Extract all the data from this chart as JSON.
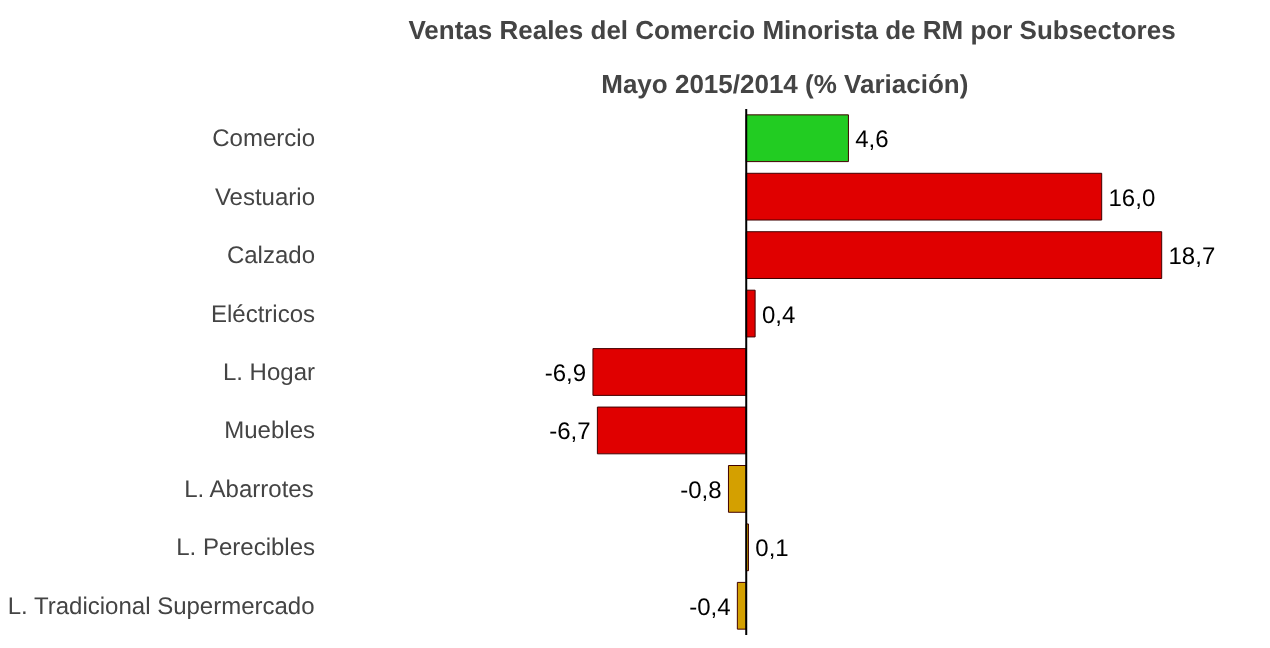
{
  "chart_data": {
    "type": "bar",
    "orientation": "horizontal",
    "title": "Ventas Reales del Comercio Minorista de RM por Subsectores",
    "subtitle": "Mayo   2015/2014 (% Variación)",
    "categories": [
      "Comercio",
      "Vestuario",
      "Calzado",
      "Eléctricos",
      "L. Hogar",
      "Muebles",
      "L. Abarrotes",
      "L. Perecibles",
      "L. Tradicional Supermercado"
    ],
    "values": [
      4.6,
      16.0,
      18.7,
      0.4,
      -6.9,
      -6.7,
      -0.8,
      0.1,
      -0.4
    ],
    "value_labels": [
      "4,6",
      "16,0",
      "18,7",
      "0,4",
      "-6,9",
      "-6,7",
      "-0,8",
      "0,1",
      "-0,4"
    ],
    "colors": [
      "#22cc22",
      "#e00000",
      "#e00000",
      "#e00000",
      "#e00000",
      "#e00000",
      "#d4a000",
      "#d4a000",
      "#d4a000"
    ],
    "grid": false
  }
}
